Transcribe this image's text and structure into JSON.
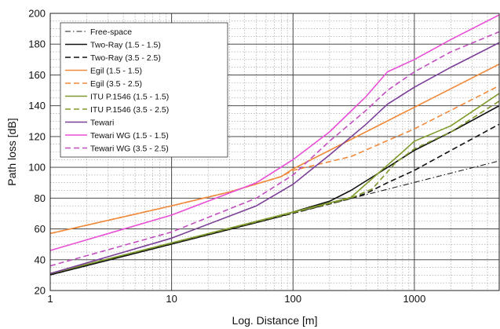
{
  "chart_data": {
    "type": "line",
    "xlabel": "Log. Distance [m]",
    "ylabel": "Path loss [dB]",
    "x_scale": "log",
    "xlim": [
      1,
      5000
    ],
    "ylim": [
      20,
      200
    ],
    "x_ticks": [
      1,
      10,
      100,
      1000
    ],
    "x_tick_labels": [
      "1",
      "10",
      "100",
      "1000"
    ],
    "y_ticks": [
      20,
      40,
      60,
      80,
      100,
      120,
      140,
      160,
      180,
      200
    ],
    "y_tick_labels": [
      "20",
      "40",
      "60",
      "80",
      "100",
      "120",
      "140",
      "160",
      "180",
      "200"
    ],
    "grid": true,
    "legend_position": "top-left",
    "series": [
      {
        "name": "Free-space",
        "color": "#222222",
        "dash": "dashdot",
        "x": [
          1,
          5000
        ],
        "y": [
          30.2,
          104.2
        ]
      },
      {
        "name": "Two-Ray (1.5 - 1.5)",
        "color": "#111111",
        "dash": "solid",
        "x": [
          1,
          80,
          100,
          200,
          300,
          500,
          1000,
          2000,
          5000
        ],
        "y": [
          30.2,
          68.3,
          71,
          78,
          85,
          96,
          111,
          123,
          140
        ]
      },
      {
        "name": "Two-Ray (3.5 - 2.5)",
        "color": "#111111",
        "dash": "dashed",
        "x": [
          1,
          300,
          400,
          600,
          1000,
          2000,
          5000
        ],
        "y": [
          30.2,
          79.7,
          83,
          90,
          98,
          111,
          128
        ]
      },
      {
        "name": "Egil (1.5 - 1.5)",
        "color": "#f08a3c",
        "dash": "solid",
        "x": [
          1,
          10,
          30,
          80,
          100,
          1000,
          5000
        ],
        "y": [
          57,
          75,
          84,
          94,
          99,
          139,
          167
        ]
      },
      {
        "name": "Egil (3.5 - 2.5)",
        "color": "#f08a3c",
        "dash": "dashed",
        "x": [
          1,
          10,
          30,
          80,
          100,
          300,
          1000,
          5000
        ],
        "y": [
          57,
          75,
          84,
          94,
          98,
          107,
          125,
          153
        ]
      },
      {
        "name": "ITU P.1546 (1.5 - 1.5)",
        "color": "#7f9a2c",
        "dash": "solid",
        "x": [
          1,
          300,
          500,
          800,
          1000,
          2000,
          5000
        ],
        "y": [
          31,
          80.5,
          96,
          110,
          117,
          127,
          148
        ]
      },
      {
        "name": "ITU P.1546 (3.5 - 2.5)",
        "color": "#7f9a2c",
        "dash": "dashed",
        "x": [
          1,
          300,
          450,
          700,
          1000,
          2000,
          5000
        ],
        "y": [
          31,
          80,
          86,
          103,
          112,
          123,
          143
        ]
      },
      {
        "name": "Tewari",
        "color": "#7b3f98",
        "dash": "solid",
        "x": [
          1,
          10,
          50,
          100,
          200,
          400,
          600,
          1000,
          2000,
          5000
        ],
        "y": [
          31,
          54,
          75,
          89,
          108,
          128,
          141,
          152,
          165,
          181
        ]
      },
      {
        "name": "Tewari WG (1.5 - 1.5)",
        "color": "#e84fd6",
        "dash": "solid",
        "x": [
          1,
          10,
          50,
          100,
          200,
          400,
          600,
          1000,
          2000,
          5000
        ],
        "y": [
          46,
          69,
          90,
          105,
          123,
          146,
          162,
          170,
          183,
          199
        ]
      },
      {
        "name": "Tewari WG (3.5 - 2.5)",
        "color": "#c24fc0",
        "dash": "dashed",
        "x": [
          1,
          10,
          50,
          100,
          200,
          400,
          600,
          1000,
          2000,
          5000
        ],
        "y": [
          36,
          58,
          80,
          95,
          117,
          137,
          150,
          162,
          175,
          188
        ]
      }
    ]
  }
}
